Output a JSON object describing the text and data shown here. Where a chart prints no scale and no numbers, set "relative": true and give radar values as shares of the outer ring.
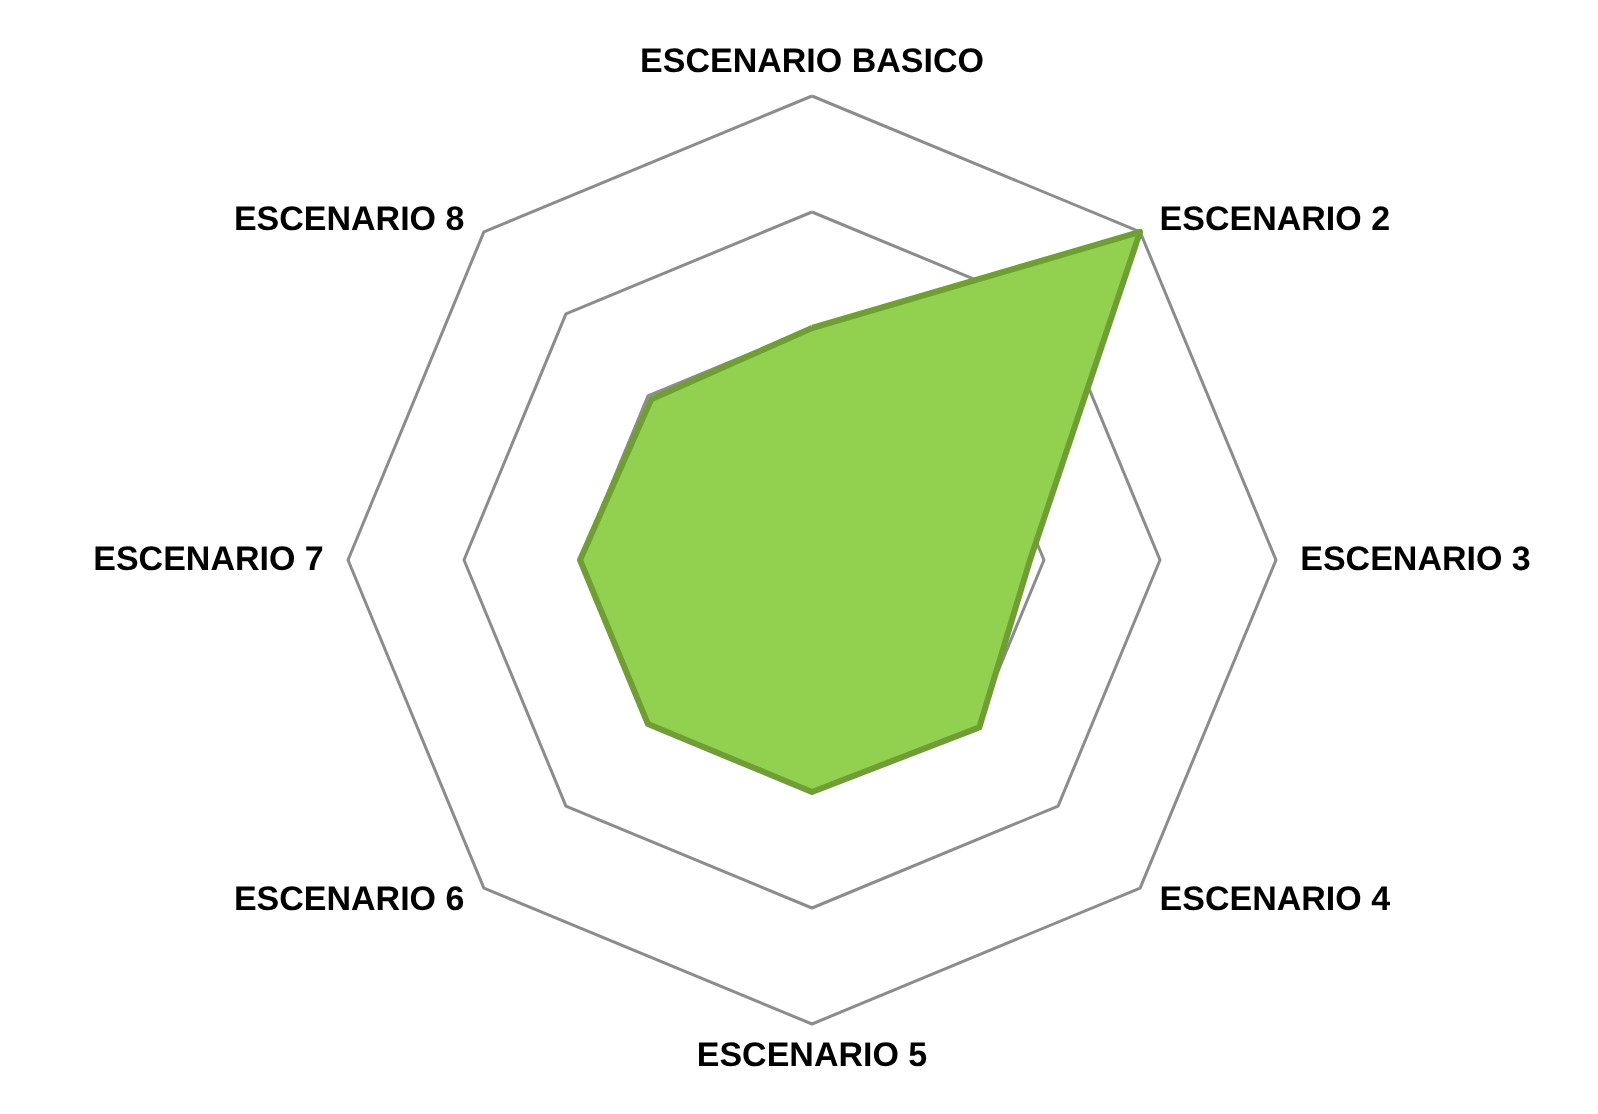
{
  "chart_data": {
    "type": "radar",
    "relative": true,
    "grid": true,
    "marker": "none",
    "categories": [
      "ESCENARIO BASICO",
      "ESCENARIO 2",
      "ESCENARIO 3",
      "ESCENARIO 4",
      "ESCENARIO 5",
      "ESCENARIO 6",
      "ESCENARIO 7",
      "ESCENARIO 8"
    ],
    "series": [
      {
        "color": "#92d050",
        "values": [
          0.5,
          1.0,
          0.47,
          0.51,
          0.5,
          0.5,
          0.5,
          0.49
        ]
      }
    ]
  }
}
